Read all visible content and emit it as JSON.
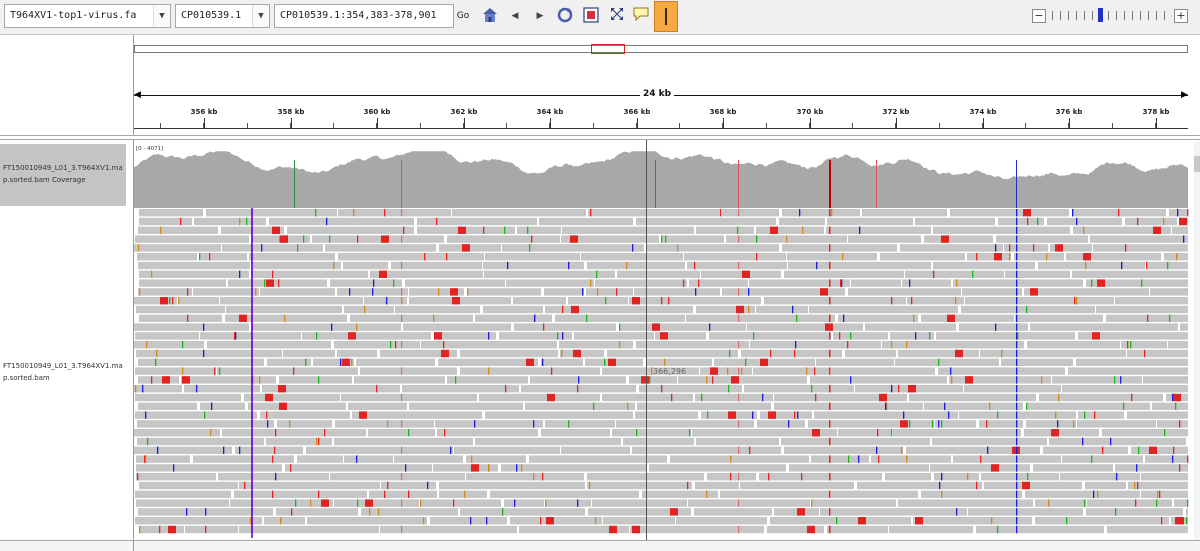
{
  "toolbar": {
    "genome_select": "T964XV1-top1-virus.fa",
    "chromosome_select": "CP010539.1",
    "locus_input": "CP010539.1:354,383-378,901",
    "go_label": "Go",
    "icons": [
      "home-icon",
      "back-arrow-icon",
      "forward-arrow-icon",
      "refresh-icon",
      "roi-icon",
      "resize-icon",
      "popup-text-icon",
      "center-line-icon"
    ]
  },
  "ruler": {
    "span_label": "24 kb",
    "tick_labels": [
      "356 kb",
      "358 kb",
      "360 kb",
      "362 kb",
      "364 kb",
      "366 kb",
      "368 kb",
      "370 kb",
      "372 kb",
      "374 kb",
      "376 kb",
      "378 kb"
    ]
  },
  "tracks": {
    "coverage": {
      "name_line1": "FT150010949_L01_3.T964XV1.ma",
      "name_line2": "p.sorted.bam Coverage",
      "data_range": "[0 - 4071]"
    },
    "alignment": {
      "name_line1": "FT150010949_L01_3.T964XV1.ma",
      "name_line2": "p.sorted.bam"
    }
  },
  "position_readout": "366,296",
  "colors": {
    "coverage_gray": "#a8a8a8",
    "read_gray": "#c6c6c6",
    "mismatch_A": "#18b818",
    "mismatch_C": "#1a1ad6",
    "mismatch_G": "#d18b1c",
    "mismatch_T": "#e82020",
    "insertion": "#7a16d8",
    "clip_red": "#e02424",
    "accent_orange": "#f5a940"
  }
}
